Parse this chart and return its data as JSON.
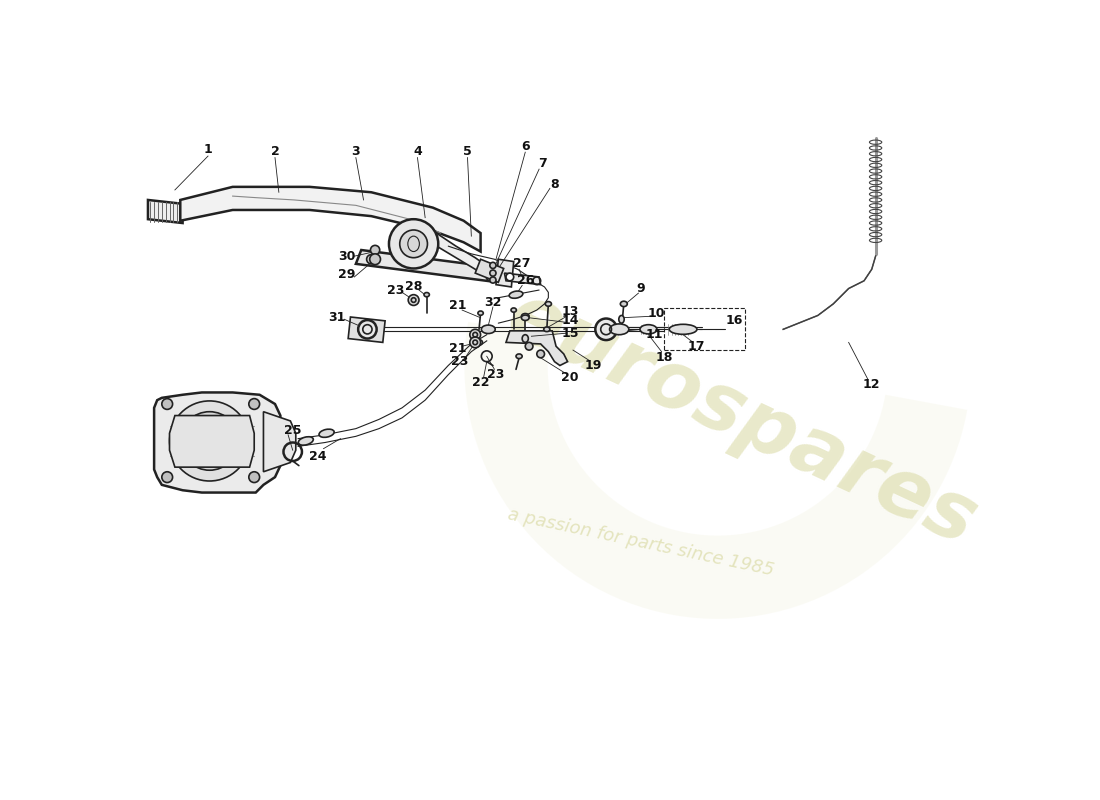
{
  "bg_color": "#ffffff",
  "line_color": "#1a1a1a",
  "wm_color1": "#d8d8a0",
  "wm_color2": "#c8c8a0",
  "wm_text1": "eurospares",
  "wm_text2": "a passion for parts since 1985",
  "drawing_line_color": "#222222",
  "label_color": "#111111"
}
